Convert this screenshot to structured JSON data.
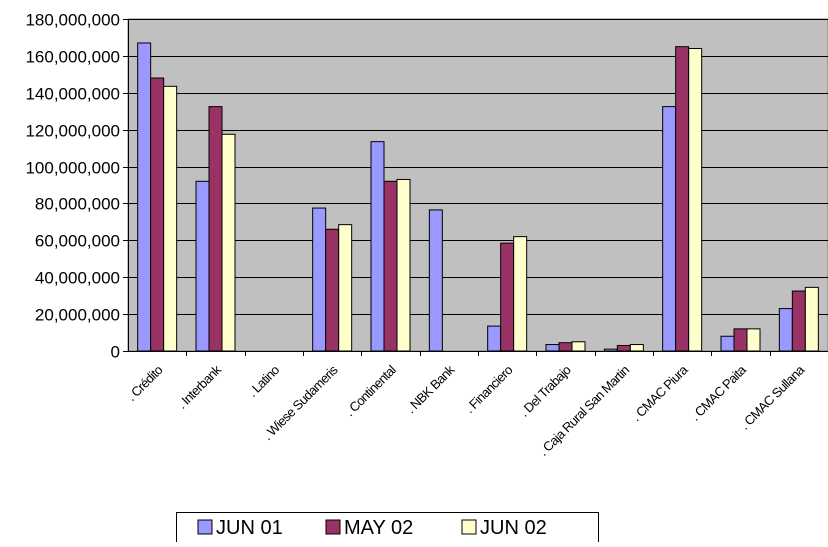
{
  "chart_data": {
    "type": "bar",
    "title": "",
    "xlabel": "",
    "ylabel": "",
    "ylim": [
      0,
      180000000
    ],
    "y_ticks": [
      0,
      20000000,
      40000000,
      60000000,
      80000000,
      100000000,
      120000000,
      140000000,
      160000000,
      180000000
    ],
    "y_tick_labels": [
      "0",
      "20,000,000",
      "40,000,000",
      "60,000,000",
      "80,000,000",
      "100,000,000",
      "120,000,000",
      "140,000,000",
      "160,000,000",
      "180,000,000"
    ],
    "grid": true,
    "legend_position": "bottom",
    "plot_background": "#c0c0c0",
    "categories": [
      ". Crédito",
      ". Interbank",
      ". Latino",
      ". Wiese Sudameris",
      ". Continental",
      ". NBK Bank",
      ". Financiero",
      ". Del Trabajo",
      ". Caja Rural San Martin",
      ". CMAC Piura",
      ". CMAC Paita",
      ". CMAC Sullana"
    ],
    "series": [
      {
        "name": "JUN 01",
        "color": "#9999ff",
        "values": [
          167000000,
          92000000,
          0,
          77500000,
          113500000,
          76500000,
          13500000,
          3500000,
          1000000,
          132500000,
          8000000,
          23000000
        ]
      },
      {
        "name": "MAY 02",
        "color": "#993366",
        "values": [
          148000000,
          132500000,
          0,
          66000000,
          92000000,
          0,
          58500000,
          4500000,
          3000000,
          165000000,
          12000000,
          32500000
        ]
      },
      {
        "name": "JUN 02",
        "color": "#ffffcc",
        "values": [
          143500000,
          117500000,
          0,
          68500000,
          93000000,
          0,
          62000000,
          5000000,
          3500000,
          164000000,
          12000000,
          34500000
        ]
      }
    ]
  }
}
